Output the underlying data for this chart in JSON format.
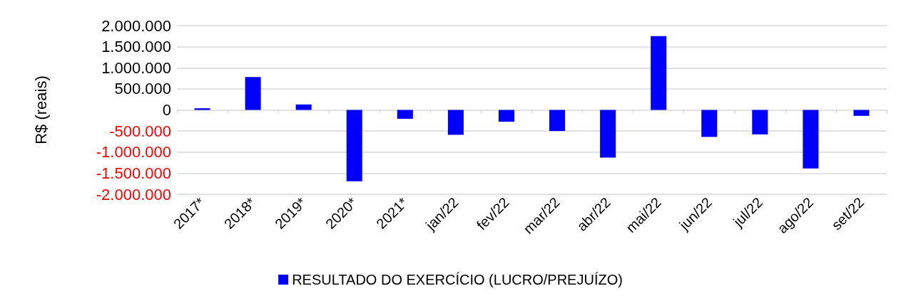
{
  "chart_data": {
    "type": "bar",
    "ylabel": "R$ (reais)",
    "categories": [
      "2017*",
      "2018*",
      "2019*",
      "2020*",
      "2021*",
      "jan/22",
      "fev/22",
      "mar/22",
      "abr/22",
      "mai/22",
      "jun/22",
      "jul/22",
      "ago/22",
      "set/22"
    ],
    "series": [
      {
        "name": "RESULTADO DO EXERCÍCIO (LUCRO/PREJUÍZO)",
        "color": "#0000ff",
        "values": [
          40000,
          780000,
          130000,
          -1690000,
          -210000,
          -590000,
          -280000,
          -500000,
          -1130000,
          1750000,
          -640000,
          -580000,
          -1390000,
          -140000
        ]
      }
    ],
    "ylim": [
      -2000000,
      2000000
    ],
    "yticks": [
      {
        "value": -2000000,
        "label": "-2.000.000"
      },
      {
        "value": -1500000,
        "label": "-1.500.000"
      },
      {
        "value": -1000000,
        "label": "-1.000.000"
      },
      {
        "value": -500000,
        "label": "-500.000"
      },
      {
        "value": 0,
        "label": "0"
      },
      {
        "value": 500000,
        "label": "500.000"
      },
      {
        "value": 1000000,
        "label": "1.000.000"
      },
      {
        "value": 1500000,
        "label": "1.500.000"
      },
      {
        "value": 2000000,
        "label": "2.000.000"
      }
    ],
    "grid": "y",
    "legend": "bottom"
  }
}
